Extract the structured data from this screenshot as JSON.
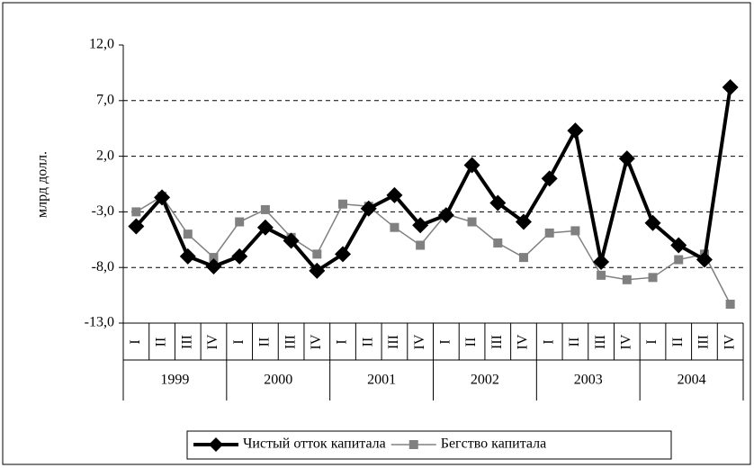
{
  "chart_data": {
    "type": "line",
    "y_label": "млрд долл.",
    "categories": [
      "I",
      "II",
      "III",
      "IV",
      "I",
      "II",
      "III",
      "IV",
      "I",
      "II",
      "III",
      "IV",
      "I",
      "II",
      "III",
      "IV",
      "I",
      "II",
      "III",
      "IV",
      "I",
      "II",
      "III",
      "IV"
    ],
    "groups": [
      "1999",
      "2000",
      "2001",
      "2002",
      "2003",
      "2004"
    ],
    "series": [
      {
        "name": "Чистый отток капитала",
        "color": "#000000",
        "marker": "diamond",
        "values": [
          -4.3,
          -1.7,
          -7.0,
          -7.9,
          -7.0,
          -4.4,
          -5.6,
          -8.3,
          -6.8,
          -2.7,
          -1.5,
          -4.2,
          -3.3,
          1.2,
          -2.2,
          -3.9,
          0.0,
          4.3,
          -7.5,
          1.8,
          -4.0,
          -6.0,
          -7.3,
          8.2
        ]
      },
      {
        "name": "Бегство капитала",
        "color": "#808080",
        "marker": "square",
        "values": [
          -3.0,
          -1.6,
          -5.0,
          -7.1,
          -3.9,
          -2.8,
          -5.3,
          -6.8,
          -2.3,
          -2.5,
          -4.4,
          -6.0,
          -3.2,
          -3.9,
          -5.8,
          -7.1,
          -4.9,
          -4.7,
          -8.7,
          -9.1,
          -8.9,
          -7.3,
          -6.8,
          -11.3
        ]
      }
    ],
    "ylim": [
      -13,
      12
    ],
    "yticks": [
      {
        "value": -13,
        "label": "-13,0"
      },
      {
        "value": -8,
        "label": "-8,0"
      },
      {
        "value": -3,
        "label": "-3,0"
      },
      {
        "value": 2,
        "label": "2,0"
      },
      {
        "value": 7,
        "label": "7,0"
      },
      {
        "value": 12,
        "label": "12,0"
      }
    ],
    "grid": true,
    "legend": "bottom"
  }
}
